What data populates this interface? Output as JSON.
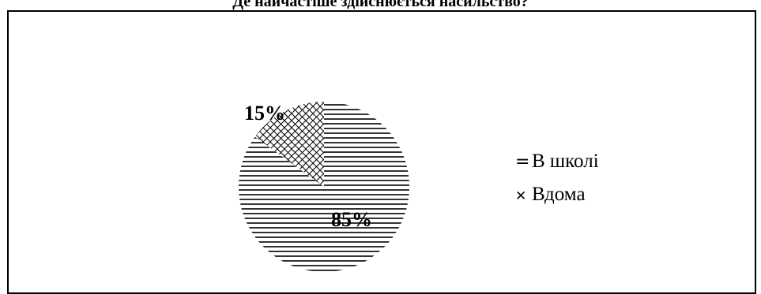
{
  "chart_data": {
    "type": "pie",
    "title": "Де найчастіше здійснюється насильство?",
    "categories": [
      "В школі",
      "Вдома"
    ],
    "values": [
      85,
      15
    ],
    "data_labels": [
      "85%",
      "15%"
    ],
    "legend_position": "right",
    "patterns": [
      "horizontal-lines",
      "crosshatch"
    ],
    "legend_markers": [
      "=",
      "✕"
    ],
    "colors": {
      "ink": "#000000",
      "background": "#ffffff"
    }
  }
}
